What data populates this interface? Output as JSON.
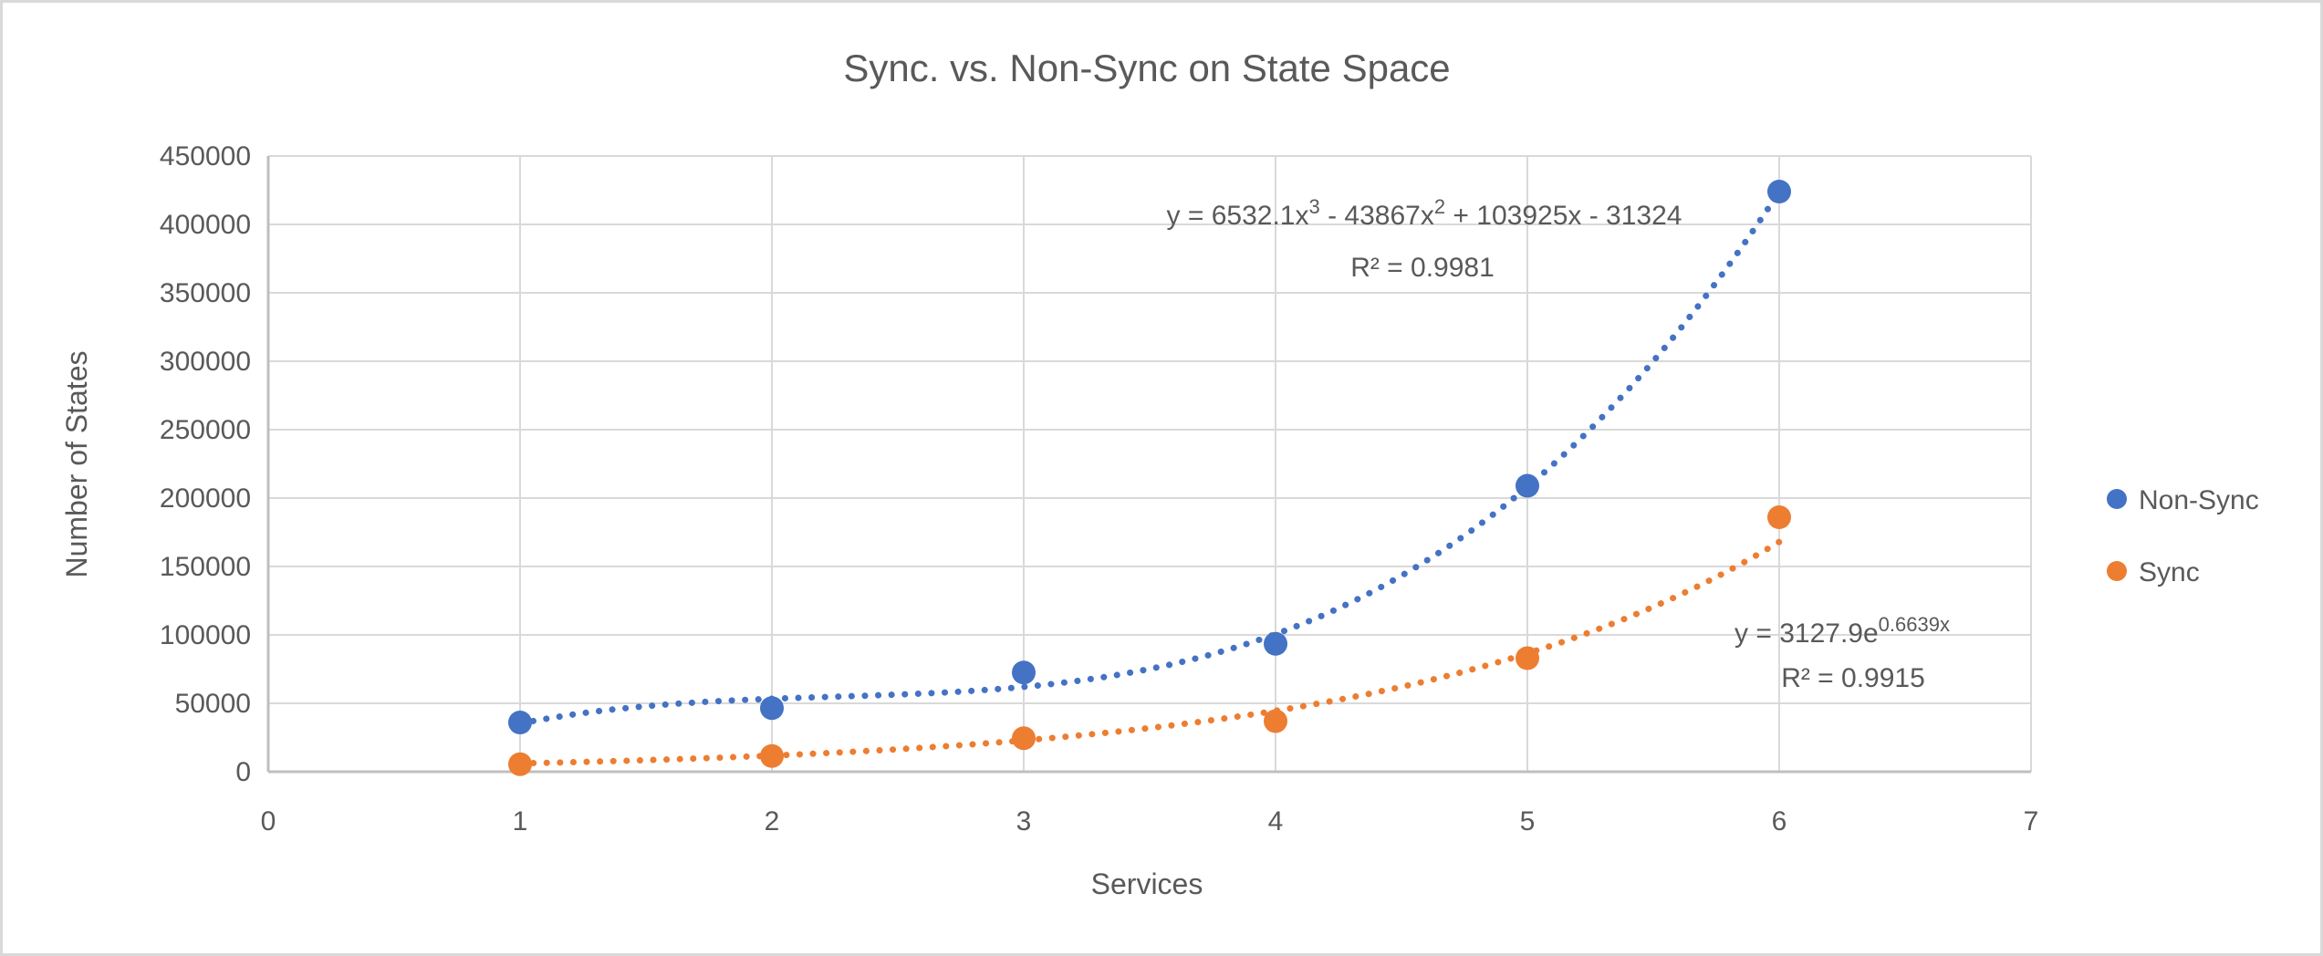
{
  "chart_data": {
    "type": "scatter",
    "title": "Sync. vs. Non-Sync on State Space",
    "xlabel": "Services",
    "ylabel": "Number of States",
    "xlim": [
      0,
      7
    ],
    "ylim": [
      0,
      450000
    ],
    "x_ticks": [
      0,
      1,
      2,
      3,
      4,
      5,
      6,
      7
    ],
    "y_ticks": [
      0,
      50000,
      100000,
      150000,
      200000,
      250000,
      300000,
      350000,
      400000,
      450000
    ],
    "grid": "both",
    "legend_position": "right",
    "series": [
      {
        "name": "Non-Sync",
        "color": "#4472C4",
        "marker": "circle",
        "x": [
          1,
          2,
          3,
          4,
          5,
          6
        ],
        "y": [
          36000,
          46500,
          72500,
          93500,
          209000,
          424000
        ],
        "trendline": {
          "kind": "polynomial",
          "degree": 3,
          "coeffs": [
            6532.1,
            -43867,
            103925,
            -31324
          ],
          "range": [
            1,
            6
          ],
          "style": "dotted",
          "equation_segments": [
            {
              "t": "y = 6532.1x"
            },
            {
              "sup": "3"
            },
            {
              "t": " - 43867x"
            },
            {
              "sup": "2"
            },
            {
              "t": " + 103925x - 31324"
            }
          ],
          "r2_label": "R² = 0.9981"
        }
      },
      {
        "name": "Sync",
        "color": "#ED7D31",
        "marker": "circle",
        "x": [
          1,
          2,
          3,
          4,
          5,
          6
        ],
        "y": [
          5500,
          11500,
          24500,
          37000,
          83000,
          186000
        ],
        "trendline": {
          "kind": "exponential",
          "a": 3127.9,
          "b": 0.6639,
          "range": [
            1,
            6
          ],
          "style": "dotted",
          "equation_segments": [
            {
              "t": "y = 3127.9e"
            },
            {
              "sup": "0.6639x"
            }
          ],
          "r2_label": "R² = 0.9915"
        }
      }
    ],
    "colors": {
      "gridline": "#D9D9D9",
      "axis_line": "#BFBFBF",
      "text": "#595959",
      "background": "#FFFFFF",
      "frame_border": "#D9D9D9"
    },
    "legend": [
      {
        "label": "Non-Sync",
        "color": "#4472C4"
      },
      {
        "label": "Sync",
        "color": "#ED7D31"
      }
    ]
  }
}
